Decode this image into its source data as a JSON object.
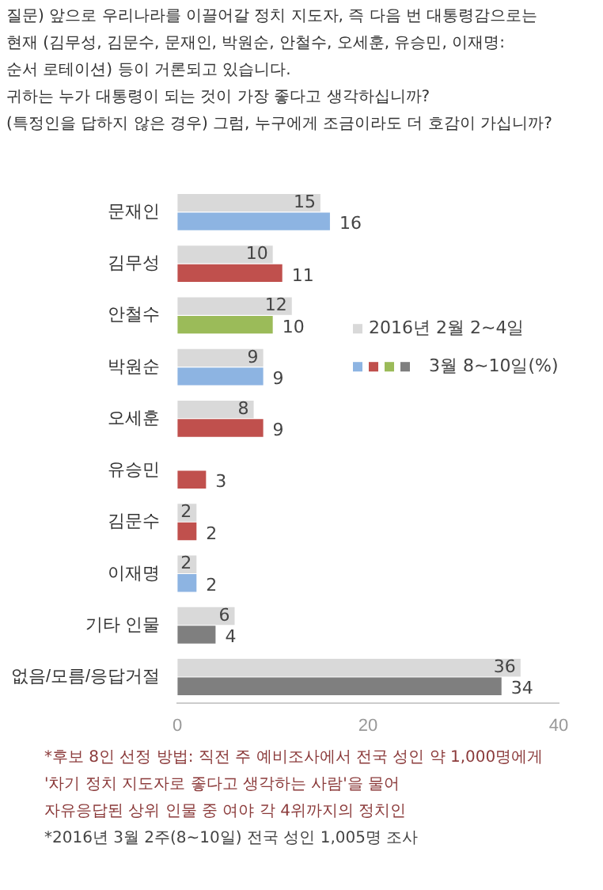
{
  "chart_data": {
    "type": "bar",
    "orientation": "horizontal",
    "title": "질문) 앞으로 우리나라를 이끌어갈 정치 지도자, 즉 다음 번 대통령감으로는\n현재 (김무성, 김문수, 문재인, 박원순, 안철수, 오세훈, 유승민, 이재명:\n순서 로테이션) 등이 거론되고 있습니다.\n귀하는 누가 대통령이 되는 것이 가장 좋다고 생각하십니까?\n(특정인을 답하지 않은 경우) 그럼, 누구에게 조금이라도 더 호감이 가십니까?",
    "categories": [
      "문재인",
      "김무성",
      "안철수",
      "박원순",
      "오세훈",
      "유승민",
      "김문수",
      "이재명",
      "기타 인물",
      "없음/모름/응답거절"
    ],
    "series": [
      {
        "name": "2016년 2월 2~4일",
        "color": "#d9d9d9",
        "values": [
          15,
          10,
          12,
          9,
          8,
          null,
          2,
          2,
          6,
          36
        ]
      },
      {
        "name": "3월 8~10일(%)",
        "colors": [
          "#8db4e2",
          "#c0504d",
          "#9bbb59",
          "#8db4e2",
          "#c0504d",
          "#c0504d",
          "#c0504d",
          "#8db4e2",
          "#7f7f7f",
          "#7f7f7f"
        ],
        "values": [
          16,
          11,
          10,
          9,
          9,
          3,
          2,
          2,
          4,
          34
        ]
      }
    ],
    "xlim": [
      0,
      40
    ],
    "xticks": [
      0,
      20,
      40
    ],
    "grid": false,
    "legend": "right",
    "data_labels": true,
    "annotations": [
      "*후보 8인 선정 방법: 직전 주 예비조사에서 전국 성인 약 1,000명에게\n'차기 정치 지도자로 좋다고 생각하는 사람'을 물어\n자유응답된 상위 인물 중 여야 각 4위까지의 정치인",
      "*2016년 3월 2주(8~10일) 전국 성인 1,005명 조사"
    ]
  }
}
